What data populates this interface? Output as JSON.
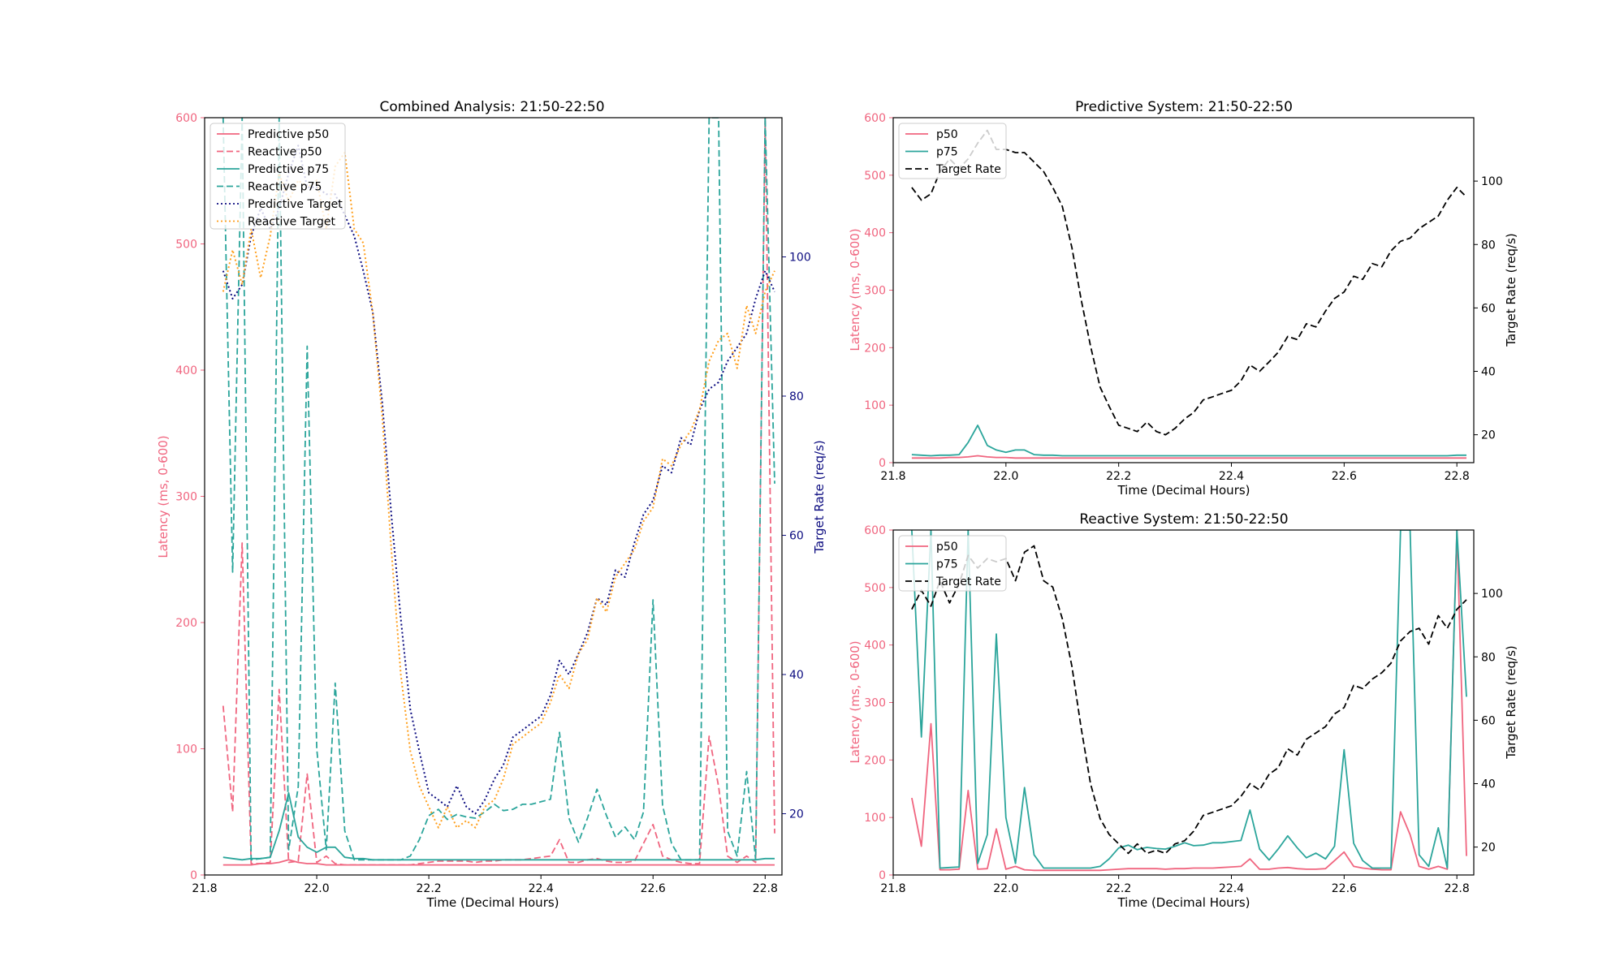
{
  "chart_data": [
    {
      "type": "line",
      "title": "Combined Analysis: 21:50-22:50",
      "xlabel": "Time (Decimal Hours)",
      "ylabel": "Latency (ms, 0-600)",
      "y2label": "Target Rate (req/s)",
      "xlim": [
        21.8,
        22.83
      ],
      "ylim": [
        0,
        600
      ],
      "y2lim": [
        11.2,
        120
      ],
      "xticks": [
        "21.8",
        "22.0",
        "22.2",
        "22.4",
        "22.6",
        "22.8"
      ],
      "yticks": [
        "0",
        "100",
        "200",
        "300",
        "400",
        "500",
        "600"
      ],
      "y2ticks": [
        "20",
        "40",
        "60",
        "80",
        "100"
      ],
      "legend_position": "top-left",
      "colors": {
        "p50": "#f0657f",
        "p75": "#2ba59b",
        "predictive_target": "#0c0c80",
        "reactive_target": "#ff9f1c",
        "left_axis": "#f0657f",
        "right_axis": "#0c0c80"
      },
      "series": [
        {
          "name": "Predictive p50",
          "axis": "left",
          "style": "solid",
          "color": "#f0657f",
          "x_ref": "x",
          "values_ref": "pred_p50"
        },
        {
          "name": "Reactive p50",
          "axis": "left",
          "style": "dashed",
          "color": "#f0657f",
          "x_ref": "x",
          "values_ref": "reac_p50"
        },
        {
          "name": "Predictive p75",
          "axis": "left",
          "style": "solid",
          "color": "#2ba59b",
          "x_ref": "x",
          "values_ref": "pred_p75"
        },
        {
          "name": "Reactive p75",
          "axis": "left",
          "style": "dashed",
          "color": "#2ba59b",
          "x_ref": "x",
          "values_ref": "reac_p75"
        },
        {
          "name": "Predictive Target",
          "axis": "right",
          "style": "dotted",
          "color": "#0c0c80",
          "x_ref": "x",
          "values_ref": "pred_target"
        },
        {
          "name": "Reactive Target",
          "axis": "right",
          "style": "dotted",
          "color": "#ff9f1c",
          "x_ref": "x",
          "values_ref": "reac_target"
        }
      ]
    },
    {
      "type": "line",
      "title": "Predictive System: 21:50-22:50",
      "xlabel": "Time (Decimal Hours)",
      "ylabel": "Latency (ms, 0-600)",
      "y2label": "Target Rate (req/s)",
      "xlim": [
        21.8,
        22.83
      ],
      "ylim": [
        0,
        600
      ],
      "y2lim": [
        11.2,
        120
      ],
      "xticks": [
        "21.8",
        "22.0",
        "22.2",
        "22.4",
        "22.6",
        "22.8"
      ],
      "yticks": [
        "0",
        "100",
        "200",
        "300",
        "400",
        "500",
        "600"
      ],
      "y2ticks": [
        "20",
        "40",
        "60",
        "80",
        "100"
      ],
      "legend_position": "top-left",
      "colors": {
        "p50": "#f0657f",
        "p75": "#2ba59b",
        "target": "#000000",
        "left_axis": "#f0657f",
        "right_axis": "#000000"
      },
      "series": [
        {
          "name": "p50",
          "axis": "left",
          "style": "solid",
          "color": "#f0657f",
          "x_ref": "x",
          "values_ref": "pred_p50"
        },
        {
          "name": "p75",
          "axis": "left",
          "style": "solid",
          "color": "#2ba59b",
          "x_ref": "x",
          "values_ref": "pred_p75"
        },
        {
          "name": "Target Rate",
          "axis": "right",
          "style": "dashed",
          "color": "#000000",
          "x_ref": "x",
          "values_ref": "pred_target"
        }
      ]
    },
    {
      "type": "line",
      "title": "Reactive System: 21:50-22:50",
      "xlabel": "Time (Decimal Hours)",
      "ylabel": "Latency (ms, 0-600)",
      "y2label": "Target Rate (req/s)",
      "xlim": [
        21.8,
        22.83
      ],
      "ylim": [
        0,
        600
      ],
      "y2lim": [
        11.2,
        120
      ],
      "xticks": [
        "21.8",
        "22.0",
        "22.2",
        "22.4",
        "22.6",
        "22.8"
      ],
      "yticks": [
        "0",
        "100",
        "200",
        "300",
        "400",
        "500",
        "600"
      ],
      "y2ticks": [
        "20",
        "40",
        "60",
        "80",
        "100"
      ],
      "legend_position": "top-left",
      "colors": {
        "p50": "#f0657f",
        "p75": "#2ba59b",
        "target": "#000000",
        "left_axis": "#f0657f",
        "right_axis": "#000000"
      },
      "series": [
        {
          "name": "p50",
          "axis": "left",
          "style": "solid",
          "color": "#f0657f",
          "x_ref": "x",
          "values_ref": "reac_p50"
        },
        {
          "name": "p75",
          "axis": "left",
          "style": "solid",
          "color": "#2ba59b",
          "x_ref": "x",
          "values_ref": "reac_p75"
        },
        {
          "name": "Target Rate",
          "axis": "right",
          "style": "dashed",
          "color": "#000000",
          "x_ref": "x",
          "values_ref": "reac_target"
        }
      ]
    }
  ],
  "shared_series": {
    "x": [
      21.833,
      21.85,
      21.867,
      21.883,
      21.9,
      21.917,
      21.933,
      21.95,
      21.967,
      21.983,
      22.0,
      22.017,
      22.033,
      22.05,
      22.067,
      22.083,
      22.1,
      22.117,
      22.133,
      22.15,
      22.167,
      22.183,
      22.2,
      22.217,
      22.233,
      22.25,
      22.267,
      22.283,
      22.3,
      22.317,
      22.333,
      22.35,
      22.367,
      22.383,
      22.4,
      22.417,
      22.433,
      22.45,
      22.467,
      22.483,
      22.5,
      22.517,
      22.533,
      22.55,
      22.567,
      22.583,
      22.6,
      22.617,
      22.633,
      22.65,
      22.667,
      22.683,
      22.7,
      22.717,
      22.733,
      22.75,
      22.767,
      22.783,
      22.8,
      22.817
    ],
    "pred_p50": [
      8,
      8,
      8,
      8,
      9,
      9,
      10,
      12,
      10,
      9,
      9,
      8,
      8,
      8,
      8,
      8,
      8,
      8,
      8,
      8,
      8,
      8,
      8,
      8,
      8,
      8,
      8,
      8,
      8,
      8,
      8,
      8,
      8,
      8,
      8,
      8,
      8,
      8,
      8,
      8,
      8,
      8,
      8,
      8,
      8,
      8,
      8,
      8,
      8,
      8,
      8,
      8,
      8,
      8,
      8,
      8,
      8,
      8,
      8,
      8
    ],
    "pred_p75": [
      14,
      13,
      12,
      13,
      13,
      14,
      35,
      65,
      30,
      22,
      18,
      22,
      22,
      14,
      13,
      13,
      12,
      12,
      12,
      12,
      12,
      12,
      12,
      12,
      12,
      12,
      12,
      12,
      12,
      12,
      12,
      12,
      12,
      12,
      12,
      12,
      12,
      12,
      12,
      12,
      12,
      12,
      12,
      12,
      12,
      12,
      12,
      12,
      12,
      12,
      12,
      12,
      12,
      12,
      12,
      12,
      12,
      12,
      13,
      13
    ],
    "reac_p50": [
      134,
      50,
      263,
      9,
      9,
      10,
      147,
      10,
      11,
      80,
      10,
      15,
      9,
      8,
      8,
      8,
      8,
      8,
      8,
      8,
      8,
      9,
      10,
      11,
      11,
      11,
      11,
      10,
      11,
      11,
      12,
      12,
      12,
      13,
      14,
      15,
      28,
      10,
      10,
      12,
      13,
      11,
      10,
      10,
      11,
      25,
      40,
      15,
      12,
      10,
      9,
      9,
      110,
      70,
      15,
      10,
      15,
      10,
      600,
      33
    ],
    "reac_p75": [
      600,
      240,
      600,
      12,
      13,
      14,
      600,
      20,
      70,
      419,
      100,
      20,
      152,
      35,
      12,
      12,
      12,
      12,
      12,
      12,
      15,
      28,
      47,
      52,
      44,
      48,
      46,
      45,
      50,
      56,
      51,
      52,
      56,
      56,
      58,
      60,
      113,
      45,
      26,
      45,
      68,
      47,
      30,
      38,
      28,
      50,
      218,
      55,
      25,
      12,
      12,
      12,
      600,
      600,
      35,
      15,
      82,
      12,
      600,
      310
    ],
    "pred_target": [
      98,
      94,
      96,
      103,
      107,
      104,
      107,
      112,
      116,
      110,
      110,
      109,
      109,
      106,
      103,
      98,
      92,
      79,
      63,
      48,
      35,
      29,
      23,
      22,
      21,
      24,
      21,
      20,
      22,
      25,
      27,
      31,
      32,
      33,
      34,
      37,
      42,
      40,
      43,
      46,
      51,
      50,
      55,
      54,
      59,
      63,
      65,
      70,
      69,
      74,
      73,
      78,
      81,
      82,
      85,
      87,
      89,
      94,
      98,
      95
    ],
    "reac_target": [
      95,
      101,
      96,
      104,
      97,
      103,
      112,
      108,
      111,
      110,
      111,
      104,
      113,
      115,
      104,
      102,
      92,
      77,
      58,
      40,
      29,
      24,
      21,
      18,
      21,
      18,
      19,
      18,
      21,
      22,
      25,
      30,
      31,
      32,
      33,
      36,
      40,
      38,
      43,
      45,
      51,
      49,
      54,
      56,
      58,
      62,
      64,
      71,
      70,
      73,
      75,
      78,
      85,
      88,
      89,
      84,
      93,
      89,
      95,
      98
    ]
  }
}
